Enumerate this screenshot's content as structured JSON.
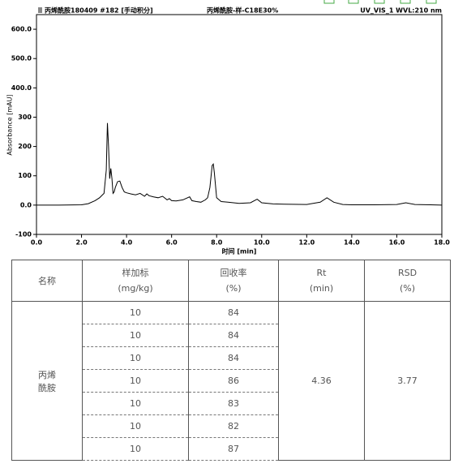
{
  "chart_data": {
    "type": "line",
    "header_left": "丙烯酰胺180409 #182 [手动积分]",
    "header_center": "丙烯酰胺-样-C18E30%",
    "header_right": "UV_VIS_1 WVL:210 nm",
    "ylabel": "Absorbance [mAU]",
    "xlabel": "时间 [min]",
    "color": "#000000",
    "x": [
      0,
      1.0,
      2.0,
      2.3,
      2.6,
      2.8,
      3.0,
      3.1,
      3.15,
      3.2,
      3.25,
      3.3,
      3.35,
      3.4,
      3.45,
      3.5,
      3.6,
      3.7,
      3.8,
      3.9,
      4.0,
      4.2,
      4.4,
      4.6,
      4.8,
      4.9,
      5.0,
      5.2,
      5.4,
      5.6,
      5.8,
      5.9,
      6.0,
      6.2,
      6.5,
      6.8,
      6.9,
      7.1,
      7.3,
      7.5,
      7.6,
      7.7,
      7.8,
      7.85,
      7.9,
      8.0,
      8.2,
      8.5,
      9.0,
      9.5,
      9.8,
      10.0,
      10.5,
      11.0,
      12.0,
      12.6,
      12.9,
      13.2,
      13.6,
      14.0,
      15.0,
      16.0,
      16.4,
      16.8,
      17.5,
      18.0
    ],
    "values": [
      0,
      0,
      1,
      5,
      15,
      25,
      40,
      120,
      280,
      200,
      90,
      125,
      90,
      40,
      45,
      60,
      80,
      82,
      60,
      45,
      42,
      38,
      35,
      40,
      30,
      38,
      32,
      28,
      25,
      30,
      18,
      22,
      15,
      14,
      18,
      28,
      15,
      12,
      10,
      18,
      25,
      60,
      135,
      140,
      110,
      25,
      12,
      10,
      6,
      8,
      20,
      8,
      4,
      3,
      2,
      10,
      25,
      10,
      2,
      1,
      1,
      2,
      8,
      2,
      1,
      0
    ],
    "xlim": [
      0,
      18
    ],
    "ylim": [
      -100,
      650
    ],
    "xticks": [
      {
        "value": 0,
        "label": "0.0"
      },
      {
        "value": 2,
        "label": "2.0"
      },
      {
        "value": 4,
        "label": "4.0"
      },
      {
        "value": 6,
        "label": "6.0"
      },
      {
        "value": 8,
        "label": "8.0"
      },
      {
        "value": 10,
        "label": "10.0"
      },
      {
        "value": 12,
        "label": "12.0"
      },
      {
        "value": 14,
        "label": "14.0"
      },
      {
        "value": 16,
        "label": "16.0"
      },
      {
        "value": 18,
        "label": "18.0"
      }
    ],
    "yticks": [
      -100,
      {
        "value": 0,
        "label": "0.0"
      },
      100,
      200,
      300,
      {
        "value": 400,
        "label": "400.0"
      },
      {
        "value": 500,
        "label": "500.0"
      },
      {
        "value": 600,
        "label": "600.0"
      }
    ]
  },
  "table": {
    "headers": [
      [
        "名称"
      ],
      [
        "样加标",
        "(mg/kg)"
      ],
      [
        "回收率",
        "(%)"
      ],
      [
        "Rt",
        "(min)"
      ],
      [
        "RSD",
        "(%)"
      ]
    ],
    "name": [
      "丙烯",
      "酰胺"
    ],
    "spiked": [
      10,
      10,
      10,
      10,
      10,
      10,
      10
    ],
    "recovery": [
      84,
      84,
      84,
      86,
      83,
      82,
      87
    ],
    "rt": 4.36,
    "rsd": 3.77
  }
}
